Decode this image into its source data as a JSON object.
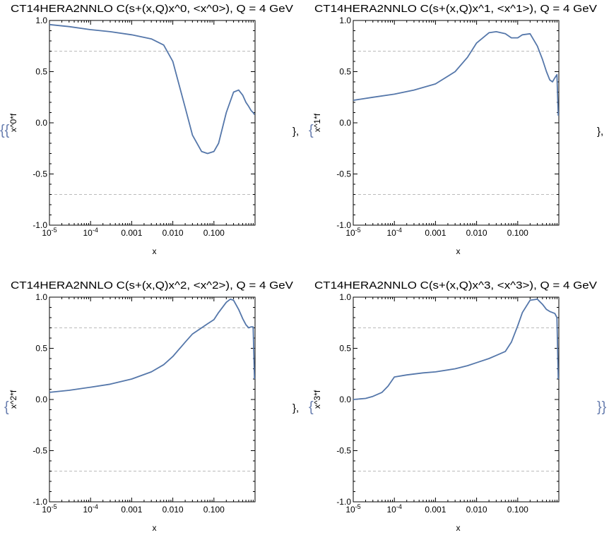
{
  "separators": {
    "open": "{{",
    "mid_left": "},",
    "open2": "{",
    "row_end": "},",
    "close_left": "},",
    "close": "}}"
  },
  "colors": {
    "curve": "#5577aa",
    "frame": "#000000",
    "refline": "#bbbbbb"
  },
  "chart_data": [
    {
      "type": "line",
      "title": "CT14HERA2NNLO C(s+(x,Q)x^0, <x^0>), Q = 4 GeV",
      "xlabel": "x",
      "ylabel": "x^0*f",
      "xscale": "log",
      "xlim": [
        1e-05,
        1
      ],
      "ylim": [
        -1,
        1
      ],
      "x_ticks": [
        "10^-5",
        "10^-4",
        "0.001",
        "0.010",
        "0.100"
      ],
      "y_ticks": [
        "1.0",
        "0.5",
        "0.0",
        "-0.5",
        "-1.0"
      ],
      "reference_lines": [
        0.7,
        -0.7
      ],
      "series": [
        {
          "x": [
            1e-05,
            3e-05,
            0.0001,
            0.0003,
            0.001,
            0.003,
            0.006,
            0.01,
            0.02,
            0.03,
            0.05,
            0.07,
            0.1,
            0.13,
            0.2,
            0.3,
            0.4,
            0.5,
            0.6,
            0.7,
            0.8,
            0.9,
            0.97
          ],
          "y": [
            0.96,
            0.94,
            0.91,
            0.89,
            0.86,
            0.82,
            0.76,
            0.6,
            0.15,
            -0.12,
            -0.28,
            -0.3,
            -0.28,
            -0.2,
            0.1,
            0.3,
            0.32,
            0.27,
            0.2,
            0.16,
            0.12,
            0.1,
            0.08
          ]
        }
      ]
    },
    {
      "type": "line",
      "title": "CT14HERA2NNLO C(s+(x,Q)x^1, <x^1>), Q = 4 GeV",
      "xlabel": "x",
      "ylabel": "x^1*f",
      "xscale": "log",
      "xlim": [
        1e-05,
        1
      ],
      "ylim": [
        -1,
        1
      ],
      "x_ticks": [
        "10^-5",
        "10^-4",
        "0.001",
        "0.010",
        "0.100"
      ],
      "y_ticks": [
        "1.0",
        "0.5",
        "0.0",
        "-0.5",
        "-1.0"
      ],
      "reference_lines": [
        0.7,
        -0.7
      ],
      "series": [
        {
          "x": [
            1e-05,
            3e-05,
            0.0001,
            0.0003,
            0.001,
            0.003,
            0.006,
            0.01,
            0.02,
            0.03,
            0.05,
            0.07,
            0.1,
            0.13,
            0.2,
            0.3,
            0.4,
            0.5,
            0.6,
            0.7,
            0.8,
            0.9,
            0.97
          ],
          "y": [
            0.22,
            0.25,
            0.28,
            0.32,
            0.38,
            0.5,
            0.64,
            0.78,
            0.88,
            0.89,
            0.87,
            0.83,
            0.83,
            0.86,
            0.87,
            0.75,
            0.62,
            0.5,
            0.42,
            0.4,
            0.44,
            0.47,
            0.07
          ]
        }
      ]
    },
    {
      "type": "line",
      "title": "CT14HERA2NNLO C(s+(x,Q)x^2, <x^2>), Q = 4 GeV",
      "xlabel": "x",
      "ylabel": "x^2*f",
      "xscale": "log",
      "xlim": [
        1e-05,
        1
      ],
      "ylim": [
        -1,
        1
      ],
      "x_ticks": [
        "10^-5",
        "10^-4",
        "0.001",
        "0.010",
        "0.100"
      ],
      "y_ticks": [
        "1.0",
        "0.5",
        "0.0",
        "-0.5",
        "-1.0"
      ],
      "reference_lines": [
        0.7,
        -0.7
      ],
      "series": [
        {
          "x": [
            1e-05,
            3e-05,
            0.0001,
            0.0003,
            0.001,
            0.003,
            0.006,
            0.01,
            0.02,
            0.03,
            0.05,
            0.07,
            0.1,
            0.13,
            0.2,
            0.25,
            0.3,
            0.4,
            0.5,
            0.6,
            0.7,
            0.8,
            0.9,
            0.97
          ],
          "y": [
            0.07,
            0.09,
            0.12,
            0.15,
            0.2,
            0.27,
            0.34,
            0.42,
            0.56,
            0.64,
            0.7,
            0.74,
            0.78,
            0.85,
            0.95,
            0.98,
            0.97,
            0.88,
            0.79,
            0.73,
            0.7,
            0.71,
            0.71,
            0.2
          ]
        }
      ]
    },
    {
      "type": "line",
      "title": "CT14HERA2NNLO C(s+(x,Q)x^3, <x^3>), Q = 4 GeV",
      "xlabel": "x",
      "ylabel": "x^3*f",
      "xscale": "log",
      "xlim": [
        1e-05,
        1
      ],
      "ylim": [
        -1,
        1
      ],
      "x_ticks": [
        "10^-5",
        "10^-4",
        "0.001",
        "0.010",
        "0.100"
      ],
      "y_ticks": [
        "1.0",
        "0.5",
        "0.0",
        "-0.5",
        "-1.0"
      ],
      "reference_lines": [
        0.7,
        -0.7
      ],
      "series": [
        {
          "x": [
            1e-05,
            2e-05,
            3e-05,
            5e-05,
            7e-05,
            0.0001,
            0.0002,
            0.0005,
            0.001,
            0.003,
            0.006,
            0.01,
            0.02,
            0.03,
            0.05,
            0.07,
            0.1,
            0.13,
            0.2,
            0.3,
            0.4,
            0.5,
            0.6,
            0.7,
            0.8,
            0.9,
            0.97
          ],
          "y": [
            0.0,
            0.01,
            0.03,
            0.07,
            0.13,
            0.22,
            0.24,
            0.26,
            0.27,
            0.3,
            0.33,
            0.36,
            0.4,
            0.43,
            0.47,
            0.56,
            0.72,
            0.85,
            0.97,
            0.98,
            0.93,
            0.88,
            0.86,
            0.85,
            0.84,
            0.8,
            0.2
          ]
        }
      ]
    }
  ]
}
